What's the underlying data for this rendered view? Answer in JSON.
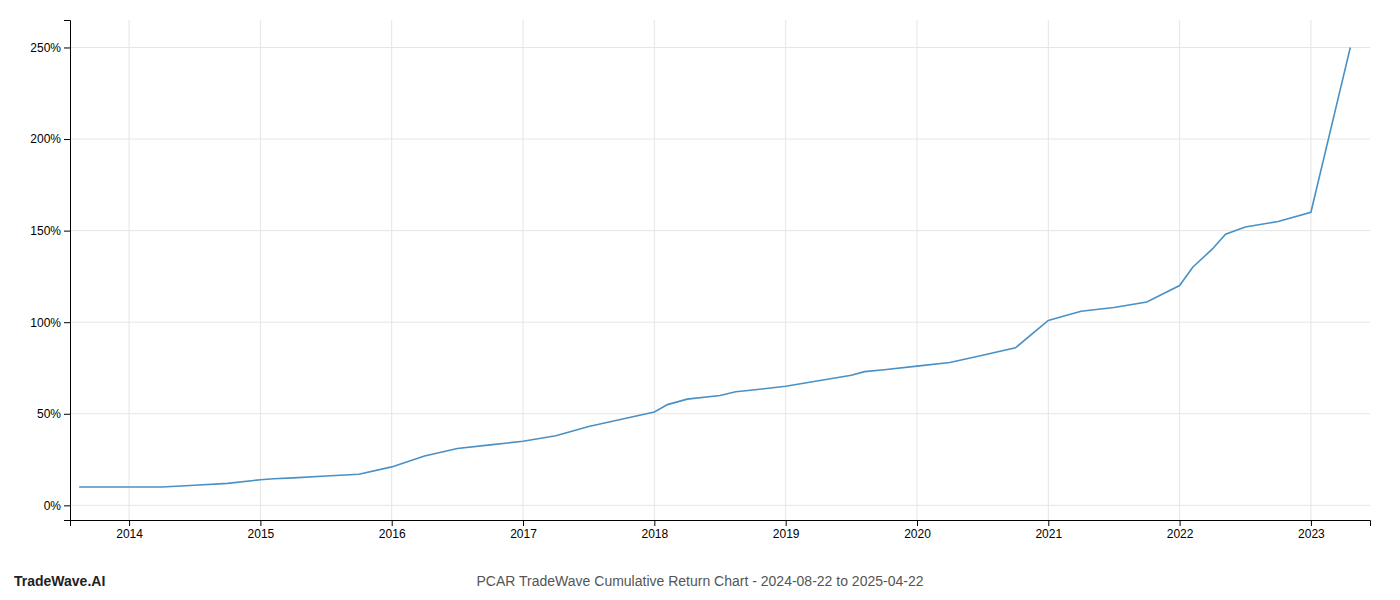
{
  "chart_data": {
    "type": "line",
    "title": "PCAR TradeWave Cumulative Return Chart - 2024-08-22 to 2025-04-22",
    "annotations": [
      "TradeWave.AI"
    ],
    "x": [
      2013.62,
      2013.75,
      2014.0,
      2014.25,
      2014.5,
      2014.75,
      2015.0,
      2015.1,
      2015.25,
      2015.5,
      2015.75,
      2016.0,
      2016.25,
      2016.5,
      2016.75,
      2017.0,
      2017.25,
      2017.5,
      2017.75,
      2018.0,
      2018.1,
      2018.25,
      2018.5,
      2018.62,
      2018.75,
      2019.0,
      2019.25,
      2019.5,
      2019.6,
      2019.75,
      2020.0,
      2020.25,
      2020.5,
      2020.75,
      2021.0,
      2021.1,
      2021.25,
      2021.5,
      2021.75,
      2022.0,
      2022.1,
      2022.25,
      2022.35,
      2022.5,
      2022.75,
      2023.0,
      2023.2,
      2023.3
    ],
    "values": [
      10,
      10,
      10,
      10,
      11,
      12,
      14,
      14.5,
      15,
      16,
      17,
      21,
      27,
      31,
      33,
      35,
      38,
      43,
      47,
      51,
      55,
      58,
      60,
      62,
      63,
      65,
      68,
      71,
      73,
      74,
      76,
      78,
      82,
      86,
      101,
      103,
      106,
      108,
      111,
      120,
      130,
      140,
      148,
      152,
      155,
      160,
      220,
      250
    ],
    "color": "#4a90c4",
    "xlim": [
      2013.55,
      2023.45
    ],
    "xticks": [
      2014,
      2015,
      2016,
      2017,
      2018,
      2019,
      2020,
      2021,
      2022,
      2023
    ],
    "ylim": [
      -8,
      265
    ],
    "yticks": [
      {
        "value": 0,
        "label": "0%"
      },
      {
        "value": 50,
        "label": "50%"
      },
      {
        "value": 100,
        "label": "100%"
      },
      {
        "value": 150,
        "label": "150%"
      },
      {
        "value": 200,
        "label": "200%"
      },
      {
        "value": 250,
        "label": "250%"
      }
    ],
    "grid": true
  }
}
